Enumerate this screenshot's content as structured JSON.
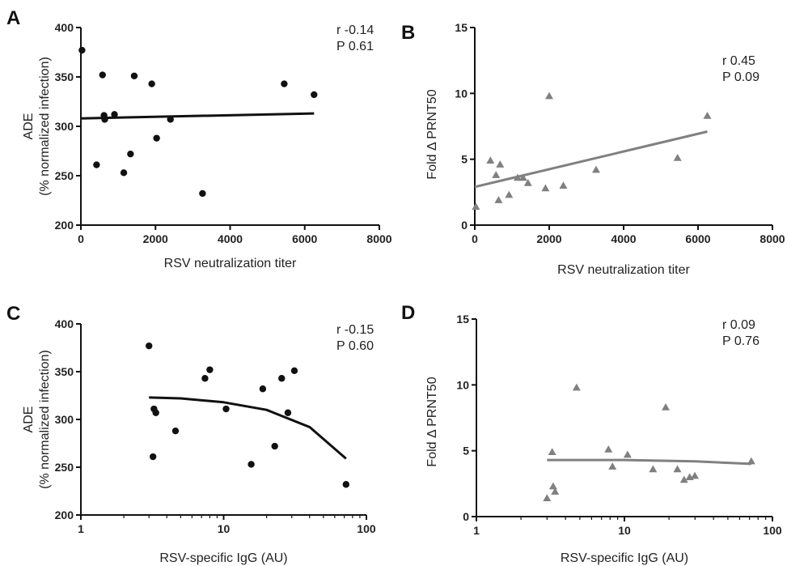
{
  "chart_data": [
    {
      "panel": "A",
      "type": "scatter",
      "marker": "circle",
      "marker_color": "#111111",
      "line_color": "#111111",
      "xscale": "linear",
      "xlim": [
        0,
        8000
      ],
      "ylim": [
        200,
        400
      ],
      "xticks": [
        0,
        2000,
        4000,
        6000,
        8000
      ],
      "yticks": [
        200,
        250,
        300,
        350,
        400
      ],
      "xlabel": "RSV neutralization titer",
      "ylabel": [
        "ADE",
        "(% normalized infection)"
      ],
      "stats": [
        "r  -0.14",
        "P  0.61"
      ],
      "points": [
        {
          "x": 30,
          "y": 377
        },
        {
          "x": 420,
          "y": 261
        },
        {
          "x": 580,
          "y": 352
        },
        {
          "x": 620,
          "y": 311
        },
        {
          "x": 640,
          "y": 307
        },
        {
          "x": 900,
          "y": 312
        },
        {
          "x": 1150,
          "y": 253
        },
        {
          "x": 1330,
          "y": 272
        },
        {
          "x": 1430,
          "y": 351
        },
        {
          "x": 1900,
          "y": 343
        },
        {
          "x": 2030,
          "y": 288
        },
        {
          "x": 2400,
          "y": 307
        },
        {
          "x": 3260,
          "y": 232
        },
        {
          "x": 5450,
          "y": 343
        },
        {
          "x": 6250,
          "y": 332
        }
      ],
      "fit": {
        "kind": "line",
        "x": [
          0,
          6250
        ],
        "y": [
          308,
          313
        ]
      }
    },
    {
      "panel": "B",
      "type": "scatter",
      "marker": "triangle",
      "marker_color": "#808080",
      "line_color": "#808080",
      "xscale": "linear",
      "xlim": [
        0,
        8000
      ],
      "ylim": [
        0,
        15
      ],
      "xticks": [
        0,
        2000,
        4000,
        6000,
        8000
      ],
      "yticks": [
        0,
        5,
        10,
        15
      ],
      "xlabel": "RSV neutralization titer",
      "ylabel": [
        "Fold Δ PRNT50"
      ],
      "stats": [
        "r  0.45",
        "P  0.09"
      ],
      "points": [
        {
          "x": 30,
          "y": 1.4
        },
        {
          "x": 420,
          "y": 4.9
        },
        {
          "x": 570,
          "y": 3.8
        },
        {
          "x": 640,
          "y": 1.9
        },
        {
          "x": 680,
          "y": 4.6
        },
        {
          "x": 920,
          "y": 2.3
        },
        {
          "x": 1150,
          "y": 3.6
        },
        {
          "x": 1300,
          "y": 3.6
        },
        {
          "x": 1430,
          "y": 3.2
        },
        {
          "x": 1900,
          "y": 2.8
        },
        {
          "x": 2000,
          "y": 9.8
        },
        {
          "x": 2380,
          "y": 3.0
        },
        {
          "x": 3260,
          "y": 4.2
        },
        {
          "x": 5450,
          "y": 5.1
        },
        {
          "x": 6250,
          "y": 8.3
        }
      ],
      "fit": {
        "kind": "line",
        "x": [
          0,
          6250
        ],
        "y": [
          2.9,
          7.1
        ]
      }
    },
    {
      "panel": "C",
      "type": "scatter",
      "marker": "circle",
      "marker_color": "#111111",
      "line_color": "#111111",
      "xscale": "log",
      "xlim": [
        1,
        100
      ],
      "ylim": [
        200,
        400
      ],
      "xticks": [
        1,
        10,
        100
      ],
      "yticks": [
        200,
        250,
        300,
        350,
        400
      ],
      "xlabel": "RSV-specific IgG (AU)",
      "ylabel": [
        "ADE",
        "(% normalized infection)"
      ],
      "stats": [
        "r  -0.15",
        "P  0.60"
      ],
      "points": [
        {
          "x": 3.0,
          "y": 377
        },
        {
          "x": 3.2,
          "y": 261
        },
        {
          "x": 3.25,
          "y": 311
        },
        {
          "x": 3.35,
          "y": 307
        },
        {
          "x": 4.6,
          "y": 288
        },
        {
          "x": 7.4,
          "y": 343
        },
        {
          "x": 8.0,
          "y": 352
        },
        {
          "x": 10.4,
          "y": 311
        },
        {
          "x": 15.6,
          "y": 253
        },
        {
          "x": 18.8,
          "y": 332
        },
        {
          "x": 22.8,
          "y": 272
        },
        {
          "x": 25.5,
          "y": 343
        },
        {
          "x": 28.2,
          "y": 307
        },
        {
          "x": 31.3,
          "y": 351
        },
        {
          "x": 72,
          "y": 232
        }
      ],
      "fit": {
        "kind": "curve",
        "x": [
          3,
          5,
          10,
          20,
          40,
          72
        ],
        "y": [
          323,
          322,
          318,
          310,
          292,
          259
        ]
      }
    },
    {
      "panel": "D",
      "type": "scatter",
      "marker": "triangle",
      "marker_color": "#808080",
      "line_color": "#808080",
      "xscale": "log",
      "xlim": [
        1,
        100
      ],
      "ylim": [
        0,
        15
      ],
      "xticks": [
        1,
        10,
        100
      ],
      "yticks": [
        0,
        5,
        10,
        15
      ],
      "xlabel": "RSV-specific IgG (AU)",
      "ylabel": [
        "Fold Δ PRNT50"
      ],
      "stats": [
        "r  0.09",
        "P  0.76"
      ],
      "points": [
        {
          "x": 3.0,
          "y": 1.4
        },
        {
          "x": 3.25,
          "y": 4.9
        },
        {
          "x": 3.3,
          "y": 2.3
        },
        {
          "x": 3.4,
          "y": 1.9
        },
        {
          "x": 4.75,
          "y": 9.8
        },
        {
          "x": 7.8,
          "y": 5.1
        },
        {
          "x": 8.3,
          "y": 3.8
        },
        {
          "x": 10.5,
          "y": 4.7
        },
        {
          "x": 15.6,
          "y": 3.6
        },
        {
          "x": 19.0,
          "y": 8.3
        },
        {
          "x": 22.8,
          "y": 3.6
        },
        {
          "x": 25.3,
          "y": 2.8
        },
        {
          "x": 27.6,
          "y": 3.0
        },
        {
          "x": 29.9,
          "y": 3.1
        },
        {
          "x": 72,
          "y": 4.2
        }
      ],
      "fit": {
        "kind": "curve",
        "x": [
          3,
          10,
          30,
          72
        ],
        "y": [
          4.3,
          4.3,
          4.2,
          4.0
        ]
      }
    }
  ]
}
